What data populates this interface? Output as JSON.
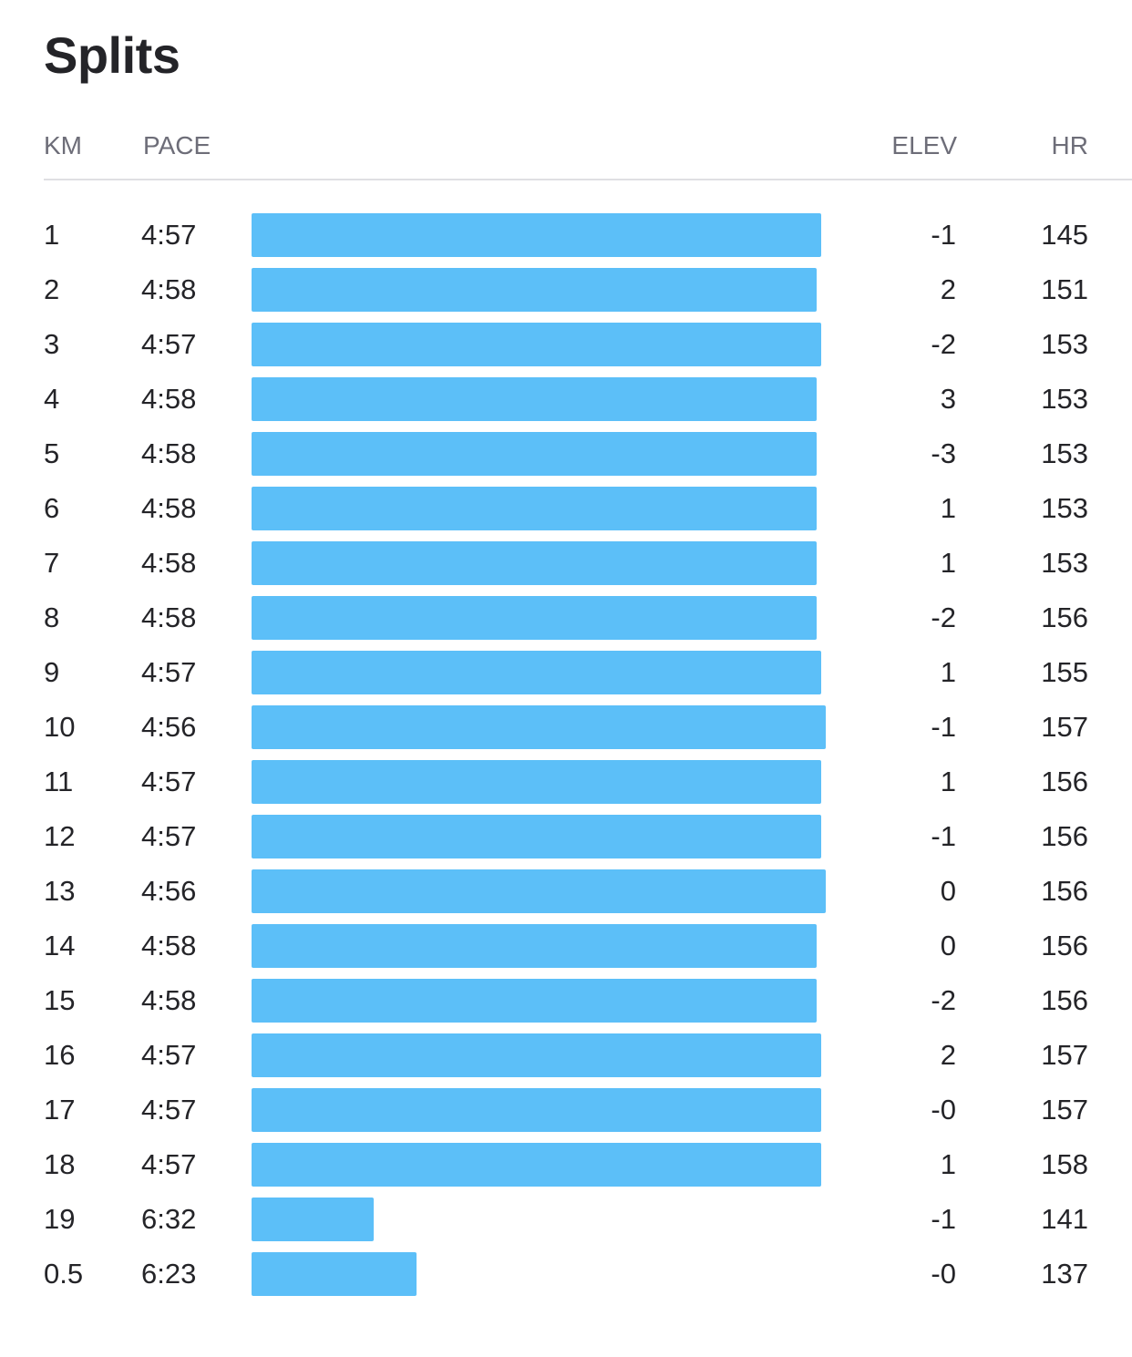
{
  "title": "Splits",
  "columns": {
    "km": "KM",
    "pace": "PACE",
    "elev": "ELEV",
    "hr": "HR"
  },
  "colors": {
    "bar": "#5cbff8",
    "text": "#242428",
    "header_text": "#6d6d78",
    "divider": "#dfdfe3"
  },
  "splits": [
    {
      "km": "1",
      "pace": "4:57",
      "elev": "-1",
      "hr": "145",
      "pace_seconds": 297
    },
    {
      "km": "2",
      "pace": "4:58",
      "elev": "2",
      "hr": "151",
      "pace_seconds": 298
    },
    {
      "km": "3",
      "pace": "4:57",
      "elev": "-2",
      "hr": "153",
      "pace_seconds": 297
    },
    {
      "km": "4",
      "pace": "4:58",
      "elev": "3",
      "hr": "153",
      "pace_seconds": 298
    },
    {
      "km": "5",
      "pace": "4:58",
      "elev": "-3",
      "hr": "153",
      "pace_seconds": 298
    },
    {
      "km": "6",
      "pace": "4:58",
      "elev": "1",
      "hr": "153",
      "pace_seconds": 298
    },
    {
      "km": "7",
      "pace": "4:58",
      "elev": "1",
      "hr": "153",
      "pace_seconds": 298
    },
    {
      "km": "8",
      "pace": "4:58",
      "elev": "-2",
      "hr": "156",
      "pace_seconds": 298
    },
    {
      "km": "9",
      "pace": "4:57",
      "elev": "1",
      "hr": "155",
      "pace_seconds": 297
    },
    {
      "km": "10",
      "pace": "4:56",
      "elev": "-1",
      "hr": "157",
      "pace_seconds": 296
    },
    {
      "km": "11",
      "pace": "4:57",
      "elev": "1",
      "hr": "156",
      "pace_seconds": 297
    },
    {
      "km": "12",
      "pace": "4:57",
      "elev": "-1",
      "hr": "156",
      "pace_seconds": 297
    },
    {
      "km": "13",
      "pace": "4:56",
      "elev": "0",
      "hr": "156",
      "pace_seconds": 296
    },
    {
      "km": "14",
      "pace": "4:58",
      "elev": "0",
      "hr": "156",
      "pace_seconds": 298
    },
    {
      "km": "15",
      "pace": "4:58",
      "elev": "-2",
      "hr": "156",
      "pace_seconds": 298
    },
    {
      "km": "16",
      "pace": "4:57",
      "elev": "2",
      "hr": "157",
      "pace_seconds": 297
    },
    {
      "km": "17",
      "pace": "4:57",
      "elev": "-0",
      "hr": "157",
      "pace_seconds": 297
    },
    {
      "km": "18",
      "pace": "4:57",
      "elev": "1",
      "hr": "158",
      "pace_seconds": 297
    },
    {
      "km": "19",
      "pace": "6:32",
      "elev": "-1",
      "hr": "141",
      "pace_seconds": 392
    },
    {
      "km": "0.5",
      "pace": "6:23",
      "elev": "-0",
      "hr": "137",
      "pace_seconds": 383
    }
  ]
}
